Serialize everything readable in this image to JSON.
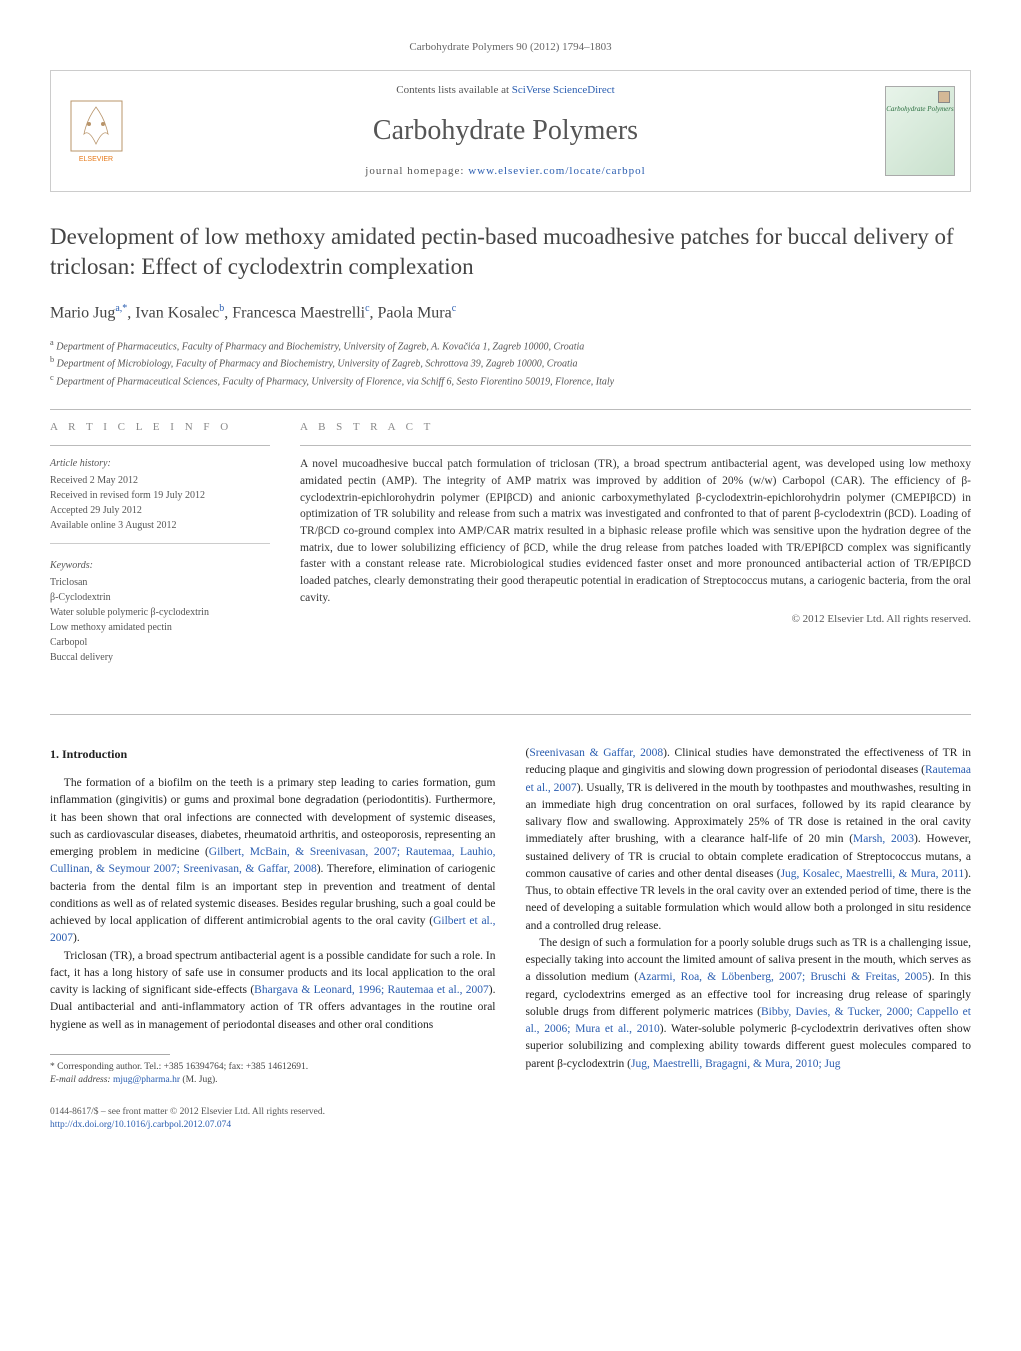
{
  "header": {
    "citation": "Carbohydrate Polymers 90 (2012) 1794–1803",
    "contents_prefix": "Contents lists available at ",
    "contents_link": "SciVerse ScienceDirect",
    "journal_name": "Carbohydrate Polymers",
    "homepage_prefix": "journal homepage: ",
    "homepage_url": "www.elsevier.com/locate/carbpol",
    "publisher_logo_label": "ELSEVIER",
    "cover_label": "Carbohydrate Polymers"
  },
  "article": {
    "title": "Development of low methoxy amidated pectin-based mucoadhesive patches for buccal delivery of triclosan: Effect of cyclodextrin complexation",
    "authors_html": "Mario Jug<sup>a,*</sup>, Ivan Kosalec<sup>b</sup>, Francesca Maestrelli<sup>c</sup>, Paola Mura<sup>c</sup>",
    "affiliations": [
      "a Department of Pharmaceutics, Faculty of Pharmacy and Biochemistry, University of Zagreb, A. Kovačića 1, Zagreb 10000, Croatia",
      "b Department of Microbiology, Faculty of Pharmacy and Biochemistry, University of Zagreb, Schrottova 39, Zagreb 10000, Croatia",
      "c Department of Pharmaceutical Sciences, Faculty of Pharmacy, University of Florence, via Schiff 6, Sesto Fiorentino 50019, Florence, Italy"
    ]
  },
  "info": {
    "heading_info": "A R T I C L E   I N F O",
    "heading_abstract": "A B S T R A C T",
    "history_label": "Article history:",
    "history": [
      "Received 2 May 2012",
      "Received in revised form 19 July 2012",
      "Accepted 29 July 2012",
      "Available online 3 August 2012"
    ],
    "keywords_label": "Keywords:",
    "keywords": [
      "Triclosan",
      "β-Cyclodextrin",
      "Water soluble polymeric β-cyclodextrin",
      "Low methoxy amidated pectin",
      "Carbopol",
      "Buccal delivery"
    ]
  },
  "abstract": {
    "text": "A novel mucoadhesive buccal patch formulation of triclosan (TR), a broad spectrum antibacterial agent, was developed using low methoxy amidated pectin (AMP). The integrity of AMP matrix was improved by addition of 20% (w/w) Carbopol (CAR). The efficiency of β-cyclodextrin-epichlorohydrin polymer (EPIβCD) and anionic carboxymethylated β-cyclodextrin-epichlorohydrin polymer (CMEPIβCD) in optimization of TR solubility and release from such a matrix was investigated and confronted to that of parent β-cyclodextrin (βCD). Loading of TR/βCD co-ground complex into AMP/CAR matrix resulted in a biphasic release profile which was sensitive upon the hydration degree of the matrix, due to lower solubilizing efficiency of βCD, while the drug release from patches loaded with TR/EPIβCD complex was significantly faster with a constant release rate. Microbiological studies evidenced faster onset and more pronounced antibacterial action of TR/EPIβCD loaded patches, clearly demonstrating their good therapeutic potential in eradication of Streptococcus mutans, a cariogenic bacteria, from the oral cavity.",
    "copyright": "© 2012 Elsevier Ltd. All rights reserved."
  },
  "body": {
    "section_number": "1.",
    "section_title": "Introduction",
    "col1_p1": "The formation of a biofilm on the teeth is a primary step leading to caries formation, gum inflammation (gingivitis) or gums and proximal bone degradation (periodontitis). Furthermore, it has been shown that oral infections are connected with development of systemic diseases, such as cardiovascular diseases, diabetes, rheumatoid arthritis, and osteoporosis, representing an emerging problem in medicine (",
    "col1_ref1": "Gilbert, McBain, & Sreenivasan, 2007; Rautemaa, Lauhio, Cullinan, & Seymour 2007; Sreenivasan, & Gaffar, 2008",
    "col1_p1b": "). Therefore, elimination of cariogenic bacteria from the dental film is an important step in prevention and treatment of dental conditions as well as of related systemic diseases. Besides regular brushing, such a goal could be achieved by local application of different antimicrobial agents to the oral cavity (",
    "col1_ref2": "Gilbert et al., 2007",
    "col1_p1c": ").",
    "col1_p2": "Triclosan (TR), a broad spectrum antibacterial agent is a possible candidate for such a role. In fact, it has a long history of safe use in consumer products and its local application to the oral cavity is lacking of significant side-effects (",
    "col1_ref3": "Bhargava & Leonard, 1996; Rautemaa et al., 2007",
    "col1_p2b": "). Dual antibacterial and anti-inflammatory action of TR offers advantages in the routine oral hygiene as well as in management of periodontal diseases and other oral conditions",
    "col2_p1a": "(",
    "col2_ref1": "Sreenivasan & Gaffar, 2008",
    "col2_p1b": "). Clinical studies have demonstrated the effectiveness of TR in reducing plaque and gingivitis and slowing down progression of periodontal diseases (",
    "col2_ref2": "Rautemaa et al., 2007",
    "col2_p1c": "). Usually, TR is delivered in the mouth by toothpastes and mouthwashes, resulting in an immediate high drug concentration on oral surfaces, followed by its rapid clearance by salivary flow and swallowing. Approximately 25% of TR dose is retained in the oral cavity immediately after brushing, with a clearance half-life of 20 min (",
    "col2_ref3": "Marsh, 2003",
    "col2_p1d": "). However, sustained delivery of TR is crucial to obtain complete eradication of Streptococcus mutans, a common causative of caries and other dental diseases (",
    "col2_ref4": "Jug, Kosalec, Maestrelli, & Mura, 2011",
    "col2_p1e": "). Thus, to obtain effective TR levels in the oral cavity over an extended period of time, there is the need of developing a suitable formulation which would allow both a prolonged in situ residence and a controlled drug release.",
    "col2_p2": "The design of such a formulation for a poorly soluble drugs such as TR is a challenging issue, especially taking into account the limited amount of saliva present in the mouth, which serves as a dissolution medium (",
    "col2_ref5": "Azarmi, Roa, & Löbenberg, 2007; Bruschi & Freitas, 2005",
    "col2_p2b": "). In this regard, cyclodextrins emerged as an effective tool for increasing drug release of sparingly soluble drugs from different polymeric matrices (",
    "col2_ref6": "Bibby, Davies, & Tucker, 2000; Cappello et al., 2006; Mura et al., 2010",
    "col2_p2c": "). Water-soluble polymeric β-cyclodextrin derivatives often show superior solubilizing and complexing ability towards different guest molecules compared to parent β-cyclodextrin (",
    "col2_ref7": "Jug, Maestrelli, Bragagni, & Mura, 2010; Jug"
  },
  "footnote": {
    "corr_label": "* Corresponding author. Tel.: +385 16394764; fax: +385 14612691.",
    "email_label": "E-mail address: ",
    "email": "mjug@pharma.hr",
    "email_suffix": " (M. Jug)."
  },
  "bottom": {
    "issn_line": "0144-8617/$ – see front matter © 2012 Elsevier Ltd. All rights reserved.",
    "doi": "http://dx.doi.org/10.1016/j.carbpol.2012.07.074"
  },
  "colors": {
    "link": "#2a5db0",
    "text": "#333333",
    "muted": "#666666",
    "rule": "#bbbbbb"
  }
}
